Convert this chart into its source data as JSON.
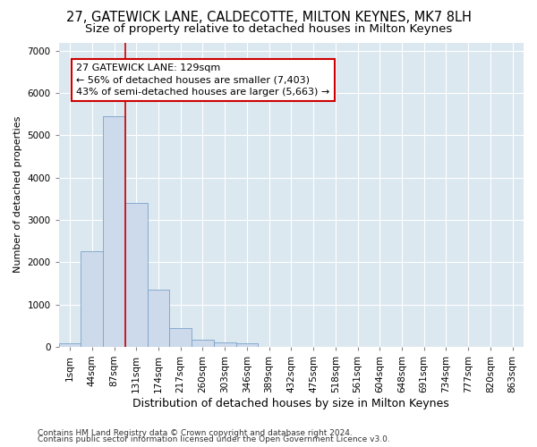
{
  "title": "27, GATEWICK LANE, CALDECOTTE, MILTON KEYNES, MK7 8LH",
  "subtitle": "Size of property relative to detached houses in Milton Keynes",
  "xlabel": "Distribution of detached houses by size in Milton Keynes",
  "ylabel": "Number of detached properties",
  "footnote1": "Contains HM Land Registry data © Crown copyright and database right 2024.",
  "footnote2": "Contains public sector information licensed under the Open Government Licence v3.0.",
  "bar_labels": [
    "1sqm",
    "44sqm",
    "87sqm",
    "131sqm",
    "174sqm",
    "217sqm",
    "260sqm",
    "303sqm",
    "346sqm",
    "389sqm",
    "432sqm",
    "475sqm",
    "518sqm",
    "561sqm",
    "604sqm",
    "648sqm",
    "691sqm",
    "734sqm",
    "777sqm",
    "820sqm",
    "863sqm"
  ],
  "bar_values": [
    75,
    2250,
    5450,
    3400,
    1350,
    450,
    170,
    100,
    70,
    0,
    0,
    0,
    0,
    0,
    0,
    0,
    0,
    0,
    0,
    0,
    0
  ],
  "bar_color": "#ccdaeb",
  "bar_edge_color": "#7ba3c8",
  "vline_x": 2.5,
  "vline_color": "#cc0000",
  "annotation_text": "27 GATEWICK LANE: 129sqm\n← 56% of detached houses are smaller (7,403)\n43% of semi-detached houses are larger (5,663) →",
  "annotation_box_facecolor": "#ffffff",
  "annotation_box_edgecolor": "#cc0000",
  "ylim": [
    0,
    7200
  ],
  "yticks": [
    0,
    1000,
    2000,
    3000,
    4000,
    5000,
    6000,
    7000
  ],
  "fig_bg_color": "#ffffff",
  "plot_bg_color": "#dce8f0",
  "grid_color": "#ffffff",
  "title_fontsize": 10.5,
  "subtitle_fontsize": 9.5,
  "xlabel_fontsize": 9,
  "ylabel_fontsize": 8,
  "tick_fontsize": 7.5,
  "annotation_fontsize": 8,
  "footnote_fontsize": 6.5
}
